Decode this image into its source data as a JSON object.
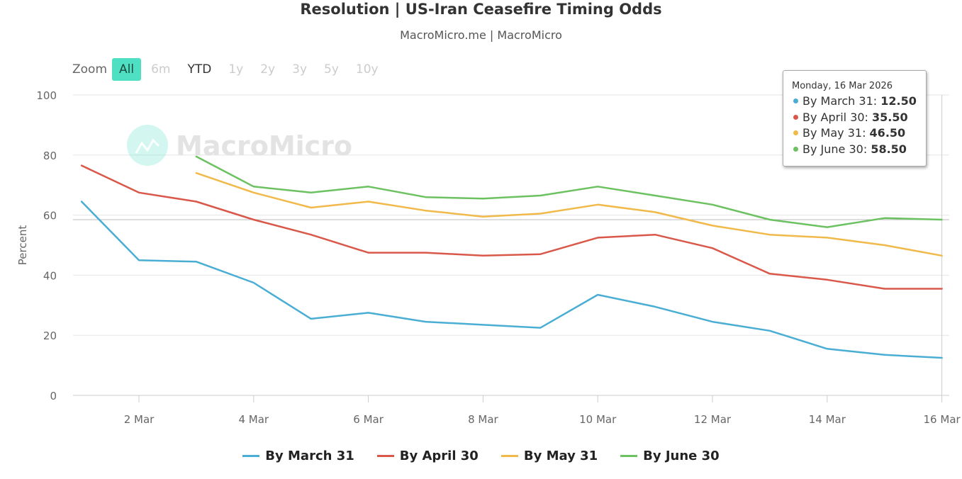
{
  "title": "Resolution | US-Iran Ceasefire Timing Odds",
  "subtitle": "MacroMicro.me | MacroMicro",
  "watermark": "MacroMicro",
  "zoom": {
    "label": "Zoom",
    "buttons": [
      {
        "label": "All",
        "state": "active"
      },
      {
        "label": "6m",
        "state": "disabled"
      },
      {
        "label": "YTD",
        "state": "enabled"
      },
      {
        "label": "1y",
        "state": "disabled"
      },
      {
        "label": "2y",
        "state": "disabled"
      },
      {
        "label": "3y",
        "state": "disabled"
      },
      {
        "label": "5y",
        "state": "disabled"
      },
      {
        "label": "10y",
        "state": "disabled"
      }
    ]
  },
  "tooltip": {
    "date": "Monday, 16 Mar 2026",
    "rows": [
      {
        "label": "By March 31",
        "value": "12.50",
        "color": "#4aaed4"
      },
      {
        "label": "By April 30",
        "value": "35.50",
        "color": "#d9584a"
      },
      {
        "label": "By May 31",
        "value": "46.50",
        "color": "#f0b94a"
      },
      {
        "label": "By June 30",
        "value": "58.50",
        "color": "#6cc160"
      }
    ]
  },
  "chart_data": {
    "type": "line",
    "title": "Resolution | US-Iran Ceasefire Timing Odds",
    "ylabel": "Percent",
    "ylim": [
      0,
      100
    ],
    "yticks": [
      0,
      20,
      40,
      60,
      80,
      100
    ],
    "xlim": [
      1,
      16
    ],
    "xticks": [
      {
        "day": 2,
        "label": "2 Mar"
      },
      {
        "day": 4,
        "label": "4 Mar"
      },
      {
        "day": 6,
        "label": "6 Mar"
      },
      {
        "day": 8,
        "label": "8 Mar"
      },
      {
        "day": 10,
        "label": "10 Mar"
      },
      {
        "day": 12,
        "label": "12 Mar"
      },
      {
        "day": 14,
        "label": "14 Mar"
      },
      {
        "day": 16,
        "label": "16 Mar"
      }
    ],
    "grid": true,
    "legend": "bottom",
    "crosshair_x": 16,
    "series": [
      {
        "name": "By March 31",
        "color": "#4aaed4",
        "x": [
          1,
          2,
          3,
          4,
          5,
          6,
          7,
          8,
          9,
          10,
          11,
          12,
          13,
          14,
          15,
          16
        ],
        "values": [
          64.5,
          45,
          44.5,
          37.5,
          25.5,
          27.5,
          24.5,
          23.5,
          22.5,
          33.5,
          29.5,
          24.5,
          21.5,
          15.5,
          13.5,
          12.5
        ]
      },
      {
        "name": "By April 30",
        "color": "#d9584a",
        "x": [
          1,
          2,
          3,
          4,
          5,
          6,
          7,
          8,
          9,
          10,
          11,
          12,
          13,
          14,
          15,
          16
        ],
        "values": [
          76.5,
          67.5,
          64.5,
          58.5,
          53.5,
          47.5,
          47.5,
          46.5,
          47,
          52.5,
          53.5,
          49,
          40.5,
          38.5,
          35.5,
          35.5
        ]
      },
      {
        "name": "By May 31",
        "color": "#f0b94a",
        "x": [
          3,
          4,
          5,
          6,
          7,
          8,
          9,
          10,
          11,
          12,
          13,
          14,
          15,
          16
        ],
        "values": [
          74,
          67.5,
          62.5,
          64.5,
          61.5,
          59.5,
          60.5,
          63.5,
          61,
          56.5,
          53.5,
          52.5,
          50,
          46.5
        ]
      },
      {
        "name": "By June 30",
        "color": "#6cc160",
        "x": [
          3,
          4,
          5,
          6,
          7,
          8,
          9,
          10,
          11,
          12,
          13,
          14,
          15,
          16
        ],
        "values": [
          79.5,
          69.5,
          67.5,
          69.5,
          66,
          65.5,
          66.5,
          69.5,
          66.5,
          63.5,
          58.5,
          56,
          59,
          58.5
        ]
      }
    ]
  }
}
